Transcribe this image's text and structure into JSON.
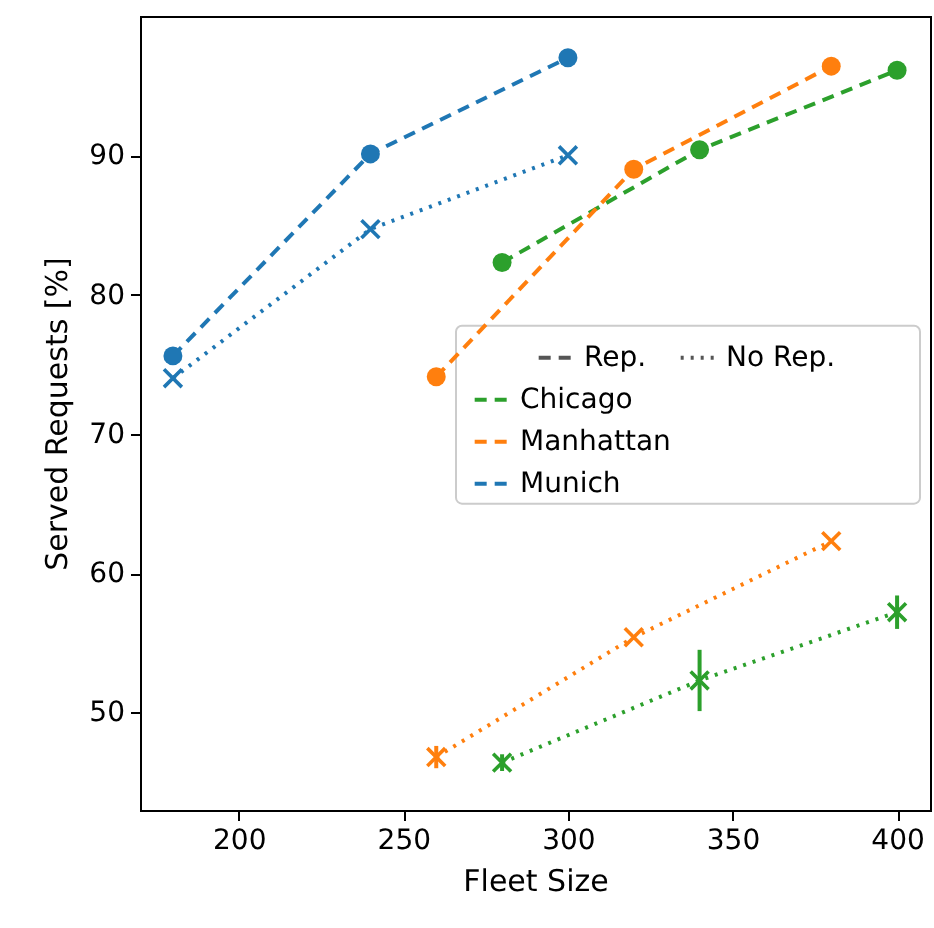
{
  "chart_data": {
    "type": "line",
    "xlabel": "Fleet Size",
    "ylabel": "Served Requests [%]",
    "xlim": [
      170,
      410
    ],
    "xticks": [
      200,
      250,
      300,
      350,
      400
    ],
    "ylim": [
      43,
      100
    ],
    "yticks": [
      50,
      60,
      70,
      80,
      90
    ],
    "grid": false,
    "legend": "right",
    "annotations": [
      "Rep.",
      "No Rep."
    ],
    "series": [
      {
        "name": "Chicago",
        "color": "#2ca02c",
        "line_style": "dashed",
        "marker": "circle",
        "x": [
          280,
          340,
          400
        ],
        "values": [
          82.3,
          90.4,
          96.1
        ],
        "errors": [
          null,
          null,
          0.6
        ]
      },
      {
        "name": "Manhattan",
        "color": "#ff7f0e",
        "line_style": "dashed",
        "marker": "circle",
        "x": [
          260,
          320,
          380
        ],
        "values": [
          74.1,
          89.0,
          96.4
        ]
      },
      {
        "name": "Munich",
        "color": "#1f77b4",
        "line_style": "dashed",
        "marker": "circle",
        "x": [
          180,
          240,
          300
        ],
        "values": [
          75.6,
          90.1,
          97.0
        ]
      },
      {
        "color": "#2ca02c",
        "line_style": "dotted",
        "marker": "cross",
        "x": [
          280,
          340,
          400
        ],
        "values": [
          46.4,
          52.3,
          57.2
        ],
        "errors": [
          0.6,
          2.2,
          1.2
        ]
      },
      {
        "color": "#ff7f0e",
        "line_style": "dotted",
        "marker": "cross",
        "x": [
          260,
          320,
          380
        ],
        "values": [
          46.8,
          55.4,
          62.3
        ],
        "errors": [
          0.8,
          null,
          null
        ]
      },
      {
        "color": "#1f77b4",
        "line_style": "dotted",
        "marker": "cross",
        "x": [
          180,
          240,
          300
        ],
        "values": [
          74.0,
          84.7,
          90.0
        ]
      }
    ]
  }
}
